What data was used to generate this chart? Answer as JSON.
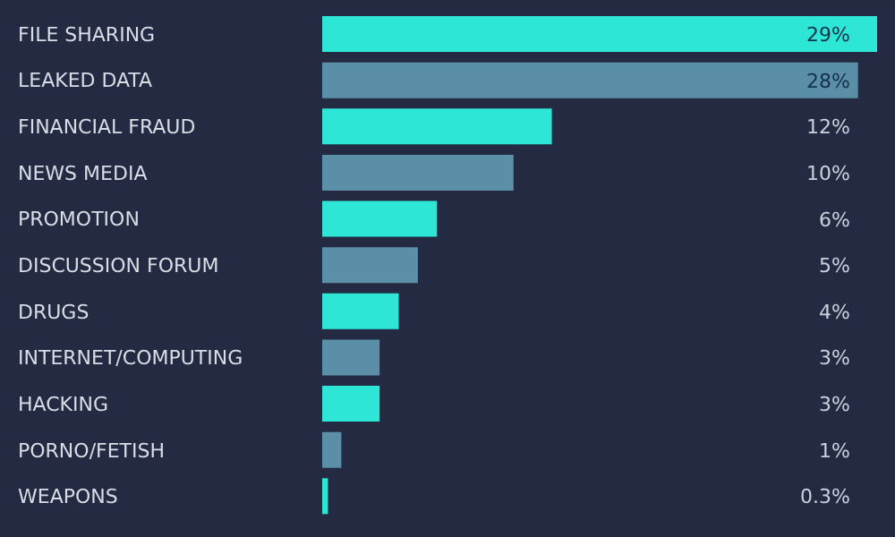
{
  "chart_data": {
    "type": "bar",
    "orientation": "horizontal",
    "categories": [
      "FILE SHARING",
      "LEAKED DATA",
      "FINANCIAL FRAUD",
      "NEWS MEDIA",
      "PROMOTION",
      "DISCUSSION FORUM",
      "DRUGS",
      "INTERNET/COMPUTING",
      "HACKING",
      "PORNO/FETISH",
      "WEAPONS"
    ],
    "values": [
      29,
      28,
      12,
      10,
      6,
      5,
      4,
      3,
      3,
      1,
      0.3
    ],
    "value_labels": [
      "29%",
      "28%",
      "12%",
      "10%",
      "6%",
      "5%",
      "4%",
      "3%",
      "3%",
      "1%",
      "0.3%"
    ],
    "colors": [
      "#2ee6d6",
      "#5b8fa8",
      "#2ee6d6",
      "#5b8fa8",
      "#2ee6d6",
      "#5b8fa8",
      "#2ee6d6",
      "#5b8fa8",
      "#2ee6d6",
      "#5b8fa8",
      "#2ee6d6"
    ]
  }
}
